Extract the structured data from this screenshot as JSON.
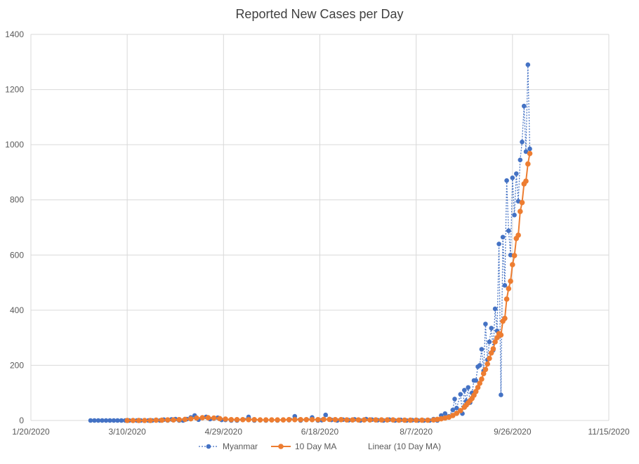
{
  "chart_data": {
    "type": "line",
    "title": "Reported New Cases per Day",
    "xlabel": "",
    "ylabel": "",
    "x_axis": {
      "min": "2020-01-20",
      "max": "2020-11-15",
      "tick_labels": [
        "1/20/2020",
        "3/10/2020",
        "4/29/2020",
        "6/18/2020",
        "8/7/2020",
        "9/26/2020",
        "11/15/2020"
      ]
    },
    "y_axis": {
      "min": 0,
      "max": 1400,
      "tick_labels": [
        "0",
        "200",
        "400",
        "600",
        "800",
        "1000",
        "1200",
        "1400"
      ]
    },
    "grid": true,
    "legend_position": "bottom",
    "colors": {
      "Myanmar": "#4472C4",
      "10 Day MA": "#ED7D31",
      "grid": "#D9D9D9",
      "axis_text": "#595959"
    },
    "series": [
      {
        "name": "Myanmar",
        "style": "dotted line with markers",
        "points": [
          [
            "2020-02-20",
            0
          ],
          [
            "2020-02-22",
            0
          ],
          [
            "2020-02-24",
            0
          ],
          [
            "2020-02-26",
            0
          ],
          [
            "2020-02-28",
            0
          ],
          [
            "2020-03-01",
            0
          ],
          [
            "2020-03-03",
            0
          ],
          [
            "2020-03-05",
            0
          ],
          [
            "2020-03-07",
            0
          ],
          [
            "2020-03-09",
            0
          ],
          [
            "2020-03-11",
            0
          ],
          [
            "2020-03-13",
            0
          ],
          [
            "2020-03-15",
            0
          ],
          [
            "2020-03-17",
            0
          ],
          [
            "2020-03-19",
            0
          ],
          [
            "2020-03-21",
            0
          ],
          [
            "2020-03-23",
            0
          ],
          [
            "2020-03-25",
            2
          ],
          [
            "2020-03-27",
            0
          ],
          [
            "2020-03-29",
            3
          ],
          [
            "2020-03-31",
            0
          ],
          [
            "2020-04-02",
            4
          ],
          [
            "2020-04-04",
            5
          ],
          [
            "2020-04-06",
            0
          ],
          [
            "2020-04-08",
            0
          ],
          [
            "2020-04-10",
            5
          ],
          [
            "2020-04-12",
            11
          ],
          [
            "2020-04-14",
            18
          ],
          [
            "2020-04-16",
            3
          ],
          [
            "2020-04-18",
            10
          ],
          [
            "2020-04-20",
            13
          ],
          [
            "2020-04-22",
            5
          ],
          [
            "2020-04-24",
            7
          ],
          [
            "2020-04-26",
            10
          ],
          [
            "2020-04-28",
            2
          ],
          [
            "2020-04-30",
            2
          ],
          [
            "2020-05-03",
            0
          ],
          [
            "2020-05-06",
            0
          ],
          [
            "2020-05-09",
            2
          ],
          [
            "2020-05-12",
            13
          ],
          [
            "2020-05-15",
            0
          ],
          [
            "2020-05-18",
            1
          ],
          [
            "2020-05-21",
            0
          ],
          [
            "2020-05-24",
            2
          ],
          [
            "2020-05-27",
            0
          ],
          [
            "2020-05-30",
            3
          ],
          [
            "2020-06-02",
            1
          ],
          [
            "2020-06-05",
            15
          ],
          [
            "2020-06-08",
            0
          ],
          [
            "2020-06-11",
            2
          ],
          [
            "2020-06-14",
            11
          ],
          [
            "2020-06-17",
            0
          ],
          [
            "2020-06-19",
            1
          ],
          [
            "2020-06-21",
            20
          ],
          [
            "2020-06-24",
            2
          ],
          [
            "2020-06-27",
            0
          ],
          [
            "2020-06-30",
            3
          ],
          [
            "2020-07-03",
            1
          ],
          [
            "2020-07-06",
            4
          ],
          [
            "2020-07-09",
            0
          ],
          [
            "2020-07-12",
            5
          ],
          [
            "2020-07-15",
            3
          ],
          [
            "2020-07-18",
            1
          ],
          [
            "2020-07-21",
            0
          ],
          [
            "2020-07-24",
            3
          ],
          [
            "2020-07-27",
            0
          ],
          [
            "2020-07-30",
            2
          ],
          [
            "2020-08-02",
            0
          ],
          [
            "2020-08-05",
            1
          ],
          [
            "2020-08-08",
            0
          ],
          [
            "2020-08-11",
            0
          ],
          [
            "2020-08-14",
            0
          ],
          [
            "2020-08-16",
            5
          ],
          [
            "2020-08-18",
            0
          ],
          [
            "2020-08-20",
            18
          ],
          [
            "2020-08-22",
            25
          ],
          [
            "2020-08-24",
            15
          ],
          [
            "2020-08-26",
            38
          ],
          [
            "2020-08-27",
            78
          ],
          [
            "2020-08-28",
            45
          ],
          [
            "2020-08-30",
            95
          ],
          [
            "2020-08-31",
            25
          ],
          [
            "2020-09-01",
            110
          ],
          [
            "2020-09-02",
            70
          ],
          [
            "2020-09-03",
            120
          ],
          [
            "2020-09-04",
            65
          ],
          [
            "2020-09-05",
            100
          ],
          [
            "2020-09-06",
            145
          ],
          [
            "2020-09-07",
            145
          ],
          [
            "2020-09-08",
            195
          ],
          [
            "2020-09-09",
            200
          ],
          [
            "2020-09-10",
            258
          ],
          [
            "2020-09-11",
            180
          ],
          [
            "2020-09-12",
            350
          ],
          [
            "2020-09-13",
            220
          ],
          [
            "2020-09-14",
            285
          ],
          [
            "2020-09-15",
            335
          ],
          [
            "2020-09-16",
            255
          ],
          [
            "2020-09-17",
            405
          ],
          [
            "2020-09-18",
            325
          ],
          [
            "2020-09-19",
            640
          ],
          [
            "2020-09-20",
            93
          ],
          [
            "2020-09-21",
            665
          ],
          [
            "2020-09-22",
            490
          ],
          [
            "2020-09-23",
            870
          ],
          [
            "2020-09-24",
            688
          ],
          [
            "2020-09-25",
            600
          ],
          [
            "2020-09-26",
            880
          ],
          [
            "2020-09-27",
            745
          ],
          [
            "2020-09-28",
            895
          ],
          [
            "2020-09-29",
            795
          ],
          [
            "2020-09-30",
            945
          ],
          [
            "2020-10-01",
            1010
          ],
          [
            "2020-10-02",
            1140
          ],
          [
            "2020-10-03",
            975
          ],
          [
            "2020-10-04",
            1290
          ],
          [
            "2020-10-05",
            985
          ]
        ]
      },
      {
        "name": "10 Day MA",
        "style": "solid line with markers",
        "points": [
          [
            "2020-03-10",
            0
          ],
          [
            "2020-03-13",
            0
          ],
          [
            "2020-03-16",
            0
          ],
          [
            "2020-03-19",
            0
          ],
          [
            "2020-03-22",
            0
          ],
          [
            "2020-03-25",
            1
          ],
          [
            "2020-03-28",
            1
          ],
          [
            "2020-03-31",
            2
          ],
          [
            "2020-04-03",
            2
          ],
          [
            "2020-04-06",
            3
          ],
          [
            "2020-04-09",
            4
          ],
          [
            "2020-04-12",
            6
          ],
          [
            "2020-04-15",
            9
          ],
          [
            "2020-04-18",
            10
          ],
          [
            "2020-04-21",
            10
          ],
          [
            "2020-04-24",
            9
          ],
          [
            "2020-04-27",
            7
          ],
          [
            "2020-04-30",
            5
          ],
          [
            "2020-05-03",
            3
          ],
          [
            "2020-05-06",
            3
          ],
          [
            "2020-05-09",
            3
          ],
          [
            "2020-05-12",
            3
          ],
          [
            "2020-05-15",
            3
          ],
          [
            "2020-05-18",
            2
          ],
          [
            "2020-05-21",
            2
          ],
          [
            "2020-05-24",
            2
          ],
          [
            "2020-05-27",
            2
          ],
          [
            "2020-05-30",
            2
          ],
          [
            "2020-06-02",
            3
          ],
          [
            "2020-06-05",
            3
          ],
          [
            "2020-06-08",
            3
          ],
          [
            "2020-06-11",
            3
          ],
          [
            "2020-06-14",
            3
          ],
          [
            "2020-06-17",
            3
          ],
          [
            "2020-06-20",
            4
          ],
          [
            "2020-06-23",
            4
          ],
          [
            "2020-06-26",
            3
          ],
          [
            "2020-06-29",
            3
          ],
          [
            "2020-07-02",
            2
          ],
          [
            "2020-07-05",
            2
          ],
          [
            "2020-07-08",
            2
          ],
          [
            "2020-07-11",
            2
          ],
          [
            "2020-07-14",
            2
          ],
          [
            "2020-07-17",
            2
          ],
          [
            "2020-07-20",
            2
          ],
          [
            "2020-07-23",
            2
          ],
          [
            "2020-07-26",
            2
          ],
          [
            "2020-07-29",
            1
          ],
          [
            "2020-08-01",
            1
          ],
          [
            "2020-08-04",
            1
          ],
          [
            "2020-08-07",
            1
          ],
          [
            "2020-08-10",
            1
          ],
          [
            "2020-08-13",
            1
          ],
          [
            "2020-08-16",
            2
          ],
          [
            "2020-08-18",
            4
          ],
          [
            "2020-08-20",
            6
          ],
          [
            "2020-08-22",
            9
          ],
          [
            "2020-08-24",
            12
          ],
          [
            "2020-08-26",
            18
          ],
          [
            "2020-08-28",
            26
          ],
          [
            "2020-08-30",
            36
          ],
          [
            "2020-09-01",
            48
          ],
          [
            "2020-09-02",
            56
          ],
          [
            "2020-09-03",
            64
          ],
          [
            "2020-09-04",
            72
          ],
          [
            "2020-09-05",
            80
          ],
          [
            "2020-09-06",
            92
          ],
          [
            "2020-09-07",
            105
          ],
          [
            "2020-09-08",
            120
          ],
          [
            "2020-09-09",
            135
          ],
          [
            "2020-09-10",
            150
          ],
          [
            "2020-09-11",
            170
          ],
          [
            "2020-09-12",
            185
          ],
          [
            "2020-09-13",
            205
          ],
          [
            "2020-09-14",
            225
          ],
          [
            "2020-09-15",
            245
          ],
          [
            "2020-09-16",
            260
          ],
          [
            "2020-09-17",
            285
          ],
          [
            "2020-09-18",
            300
          ],
          [
            "2020-09-19",
            315
          ],
          [
            "2020-09-20",
            310
          ],
          [
            "2020-09-21",
            360
          ],
          [
            "2020-09-22",
            370
          ],
          [
            "2020-09-23",
            440
          ],
          [
            "2020-09-24",
            478
          ],
          [
            "2020-09-25",
            505
          ],
          [
            "2020-09-26",
            565
          ],
          [
            "2020-09-27",
            598
          ],
          [
            "2020-09-28",
            660
          ],
          [
            "2020-09-29",
            672
          ],
          [
            "2020-09-30",
            758
          ],
          [
            "2020-10-01",
            790
          ],
          [
            "2020-10-02",
            858
          ],
          [
            "2020-10-03",
            868
          ],
          [
            "2020-10-04",
            930
          ],
          [
            "2020-10-05",
            968
          ]
        ]
      },
      {
        "name": "Linear (10 Day MA)",
        "style": "trendline (not visible)",
        "points": []
      }
    ]
  }
}
